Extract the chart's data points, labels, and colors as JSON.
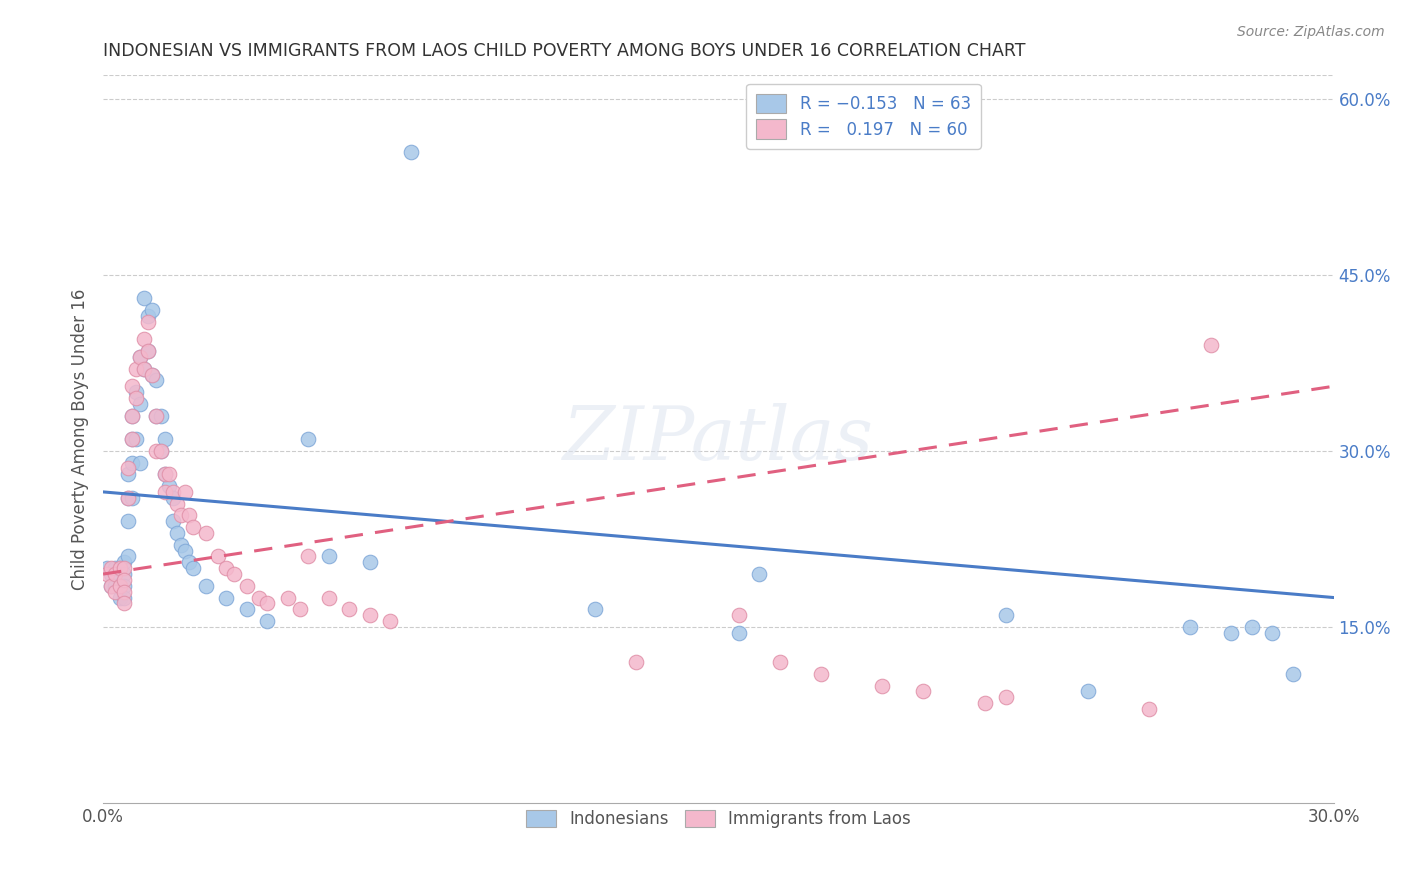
{
  "title": "INDONESIAN VS IMMIGRANTS FROM LAOS CHILD POVERTY AMONG BOYS UNDER 16 CORRELATION CHART",
  "source": "Source: ZipAtlas.com",
  "ylabel": "Child Poverty Among Boys Under 16",
  "xlim": [
    0.0,
    0.3
  ],
  "ylim": [
    0.0,
    0.62
  ],
  "R_blue": -0.153,
  "N_blue": 63,
  "R_pink": 0.197,
  "N_pink": 60,
  "blue_color": "#a8c8e8",
  "pink_color": "#f4b8cc",
  "blue_line_color": "#4a7cc7",
  "pink_line_color": "#e06080",
  "legend_text_color": "#4a7cc7",
  "title_color": "#333333",
  "source_color": "#888888",
  "grid_color": "#cccccc",
  "blue_line_x0": 0.0,
  "blue_line_x1": 0.3,
  "blue_line_y0": 0.265,
  "blue_line_y1": 0.175,
  "pink_line_x0": 0.0,
  "pink_line_x1": 0.3,
  "pink_line_y0": 0.195,
  "pink_line_y1": 0.355,
  "blue_x": [
    0.001,
    0.002,
    0.002,
    0.003,
    0.003,
    0.004,
    0.004,
    0.004,
    0.005,
    0.005,
    0.005,
    0.005,
    0.006,
    0.006,
    0.006,
    0.006,
    0.007,
    0.007,
    0.007,
    0.007,
    0.008,
    0.008,
    0.009,
    0.009,
    0.009,
    0.01,
    0.01,
    0.011,
    0.011,
    0.012,
    0.012,
    0.013,
    0.013,
    0.014,
    0.014,
    0.015,
    0.015,
    0.016,
    0.017,
    0.017,
    0.018,
    0.019,
    0.02,
    0.021,
    0.022,
    0.025,
    0.03,
    0.035,
    0.04,
    0.05,
    0.055,
    0.065,
    0.075,
    0.12,
    0.155,
    0.16,
    0.22,
    0.24,
    0.265,
    0.275,
    0.28,
    0.285,
    0.29
  ],
  "blue_y": [
    0.2,
    0.195,
    0.185,
    0.2,
    0.185,
    0.2,
    0.185,
    0.175,
    0.205,
    0.195,
    0.185,
    0.175,
    0.21,
    0.28,
    0.26,
    0.24,
    0.33,
    0.31,
    0.29,
    0.26,
    0.35,
    0.31,
    0.38,
    0.34,
    0.29,
    0.43,
    0.37,
    0.415,
    0.385,
    0.42,
    0.365,
    0.36,
    0.33,
    0.33,
    0.3,
    0.31,
    0.28,
    0.27,
    0.26,
    0.24,
    0.23,
    0.22,
    0.215,
    0.205,
    0.2,
    0.185,
    0.175,
    0.165,
    0.155,
    0.31,
    0.21,
    0.205,
    0.555,
    0.165,
    0.145,
    0.195,
    0.16,
    0.095,
    0.15,
    0.145,
    0.15,
    0.145,
    0.11
  ],
  "pink_x": [
    0.001,
    0.002,
    0.002,
    0.003,
    0.003,
    0.004,
    0.004,
    0.005,
    0.005,
    0.005,
    0.005,
    0.006,
    0.006,
    0.007,
    0.007,
    0.007,
    0.008,
    0.008,
    0.009,
    0.01,
    0.01,
    0.011,
    0.011,
    0.012,
    0.013,
    0.013,
    0.014,
    0.015,
    0.015,
    0.016,
    0.017,
    0.018,
    0.019,
    0.02,
    0.021,
    0.022,
    0.025,
    0.028,
    0.03,
    0.032,
    0.035,
    0.038,
    0.04,
    0.045,
    0.048,
    0.05,
    0.055,
    0.06,
    0.065,
    0.07,
    0.13,
    0.155,
    0.165,
    0.175,
    0.19,
    0.2,
    0.215,
    0.22,
    0.255,
    0.27
  ],
  "pink_y": [
    0.195,
    0.2,
    0.185,
    0.195,
    0.18,
    0.2,
    0.185,
    0.2,
    0.19,
    0.18,
    0.17,
    0.285,
    0.26,
    0.355,
    0.33,
    0.31,
    0.37,
    0.345,
    0.38,
    0.395,
    0.37,
    0.41,
    0.385,
    0.365,
    0.33,
    0.3,
    0.3,
    0.28,
    0.265,
    0.28,
    0.265,
    0.255,
    0.245,
    0.265,
    0.245,
    0.235,
    0.23,
    0.21,
    0.2,
    0.195,
    0.185,
    0.175,
    0.17,
    0.175,
    0.165,
    0.21,
    0.175,
    0.165,
    0.16,
    0.155,
    0.12,
    0.16,
    0.12,
    0.11,
    0.1,
    0.095,
    0.085,
    0.09,
    0.08,
    0.39
  ]
}
